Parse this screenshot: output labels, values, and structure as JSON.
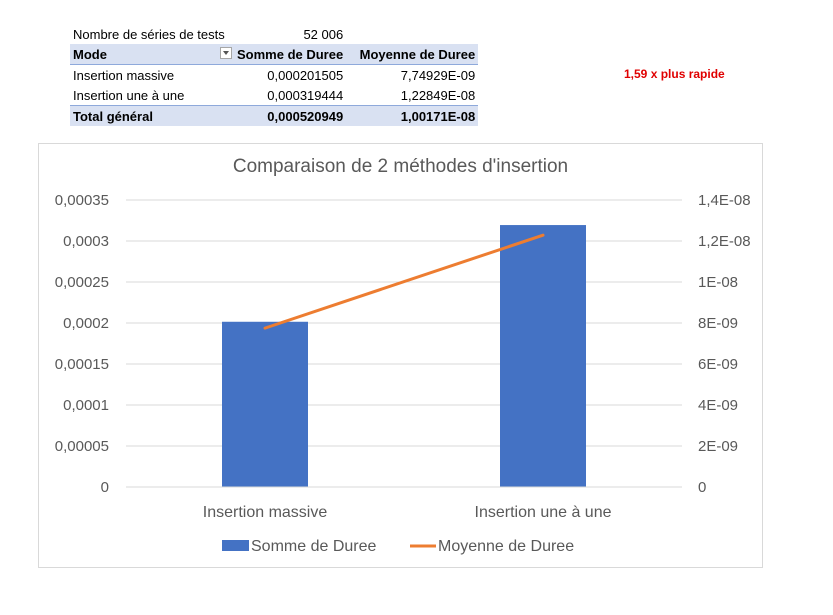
{
  "pivot": {
    "tests_label": "Nombre de séries de tests",
    "tests_value": "52 006",
    "headers": [
      "Mode",
      "Somme de Duree",
      "Moyenne de Duree"
    ],
    "rows": [
      [
        "Insertion massive",
        "0,000201505",
        "7,74929E-09"
      ],
      [
        "Insertion une à une",
        "0,000319444",
        "1,22849E-08"
      ]
    ],
    "total": [
      "Total général",
      "0,000520949",
      "1,00171E-08"
    ]
  },
  "note": "1,59  x plus rapide",
  "chart_data": {
    "type": "bar",
    "title": "Comparaison de 2 méthodes d'insertion",
    "categories": [
      "Insertion massive",
      "Insertion une à une"
    ],
    "series": [
      {
        "name": "Somme de Duree",
        "type": "bar",
        "axis": "left",
        "color": "#4472c4",
        "values": [
          0.000201505,
          0.000319444
        ]
      },
      {
        "name": "Moyenne de Duree",
        "type": "line",
        "axis": "right",
        "color": "#ed7d31",
        "values": [
          7.74929e-09,
          1.22849e-08
        ]
      }
    ],
    "ylim_left": [
      0,
      0.00035
    ],
    "yticks_left": [
      "0",
      "0,00005",
      "0,0001",
      "0,00015",
      "0,0002",
      "0,00025",
      "0,0003",
      "0,00035"
    ],
    "ylim_right": [
      0,
      1.4e-08
    ],
    "yticks_right": [
      "0",
      "2E-09",
      "4E-09",
      "6E-09",
      "8E-09",
      "1E-08",
      "1,2E-08",
      "1,4E-08"
    ],
    "grid": true,
    "legend": "bottom"
  }
}
